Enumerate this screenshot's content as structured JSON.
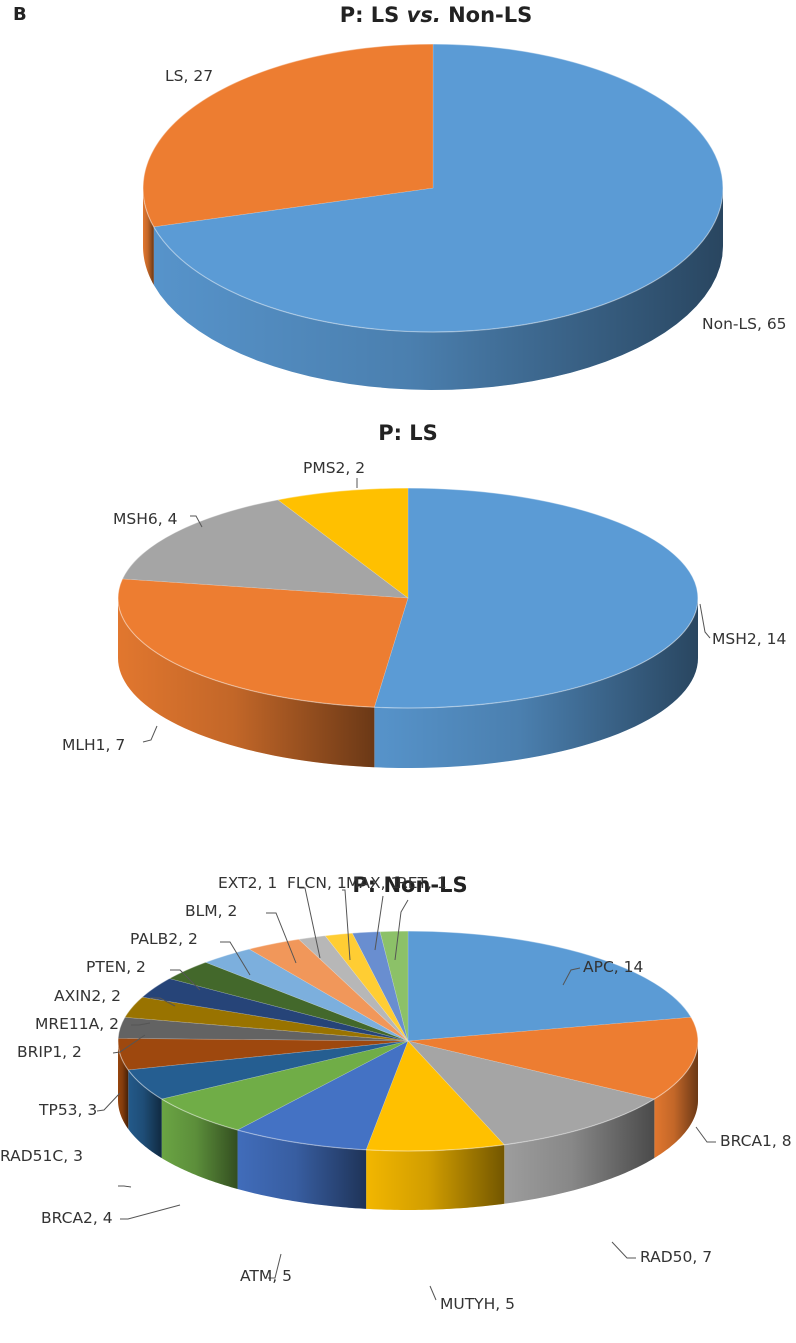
{
  "panel_letter": "B",
  "chart_data": [
    {
      "type": "pie",
      "title_parts": [
        {
          "text": "P: LS ",
          "italic": false
        },
        {
          "text": "vs.",
          "italic": true
        },
        {
          "text": " Non-LS",
          "italic": false
        }
      ],
      "slices": [
        {
          "label": "Non-LS",
          "value": 65,
          "display": "Non-LS, 65",
          "color": "#5B9BD5"
        },
        {
          "label": "LS",
          "value": 27,
          "display": "LS, 27",
          "color": "#ED7D31"
        }
      ]
    },
    {
      "type": "pie",
      "title": "P: LS",
      "slices": [
        {
          "label": "MSH2",
          "value": 14,
          "display": "MSH2, 14",
          "color": "#5B9BD5"
        },
        {
          "label": "MLH1",
          "value": 7,
          "display": "MLH1, 7",
          "color": "#ED7D31"
        },
        {
          "label": "MSH6",
          "value": 4,
          "display": "MSH6, 4",
          "color": "#A5A5A5"
        },
        {
          "label": "PMS2",
          "value": 2,
          "display": "PMS2, 2",
          "color": "#FFC000"
        }
      ]
    },
    {
      "type": "pie",
      "title": "P: Non-LS",
      "slices": [
        {
          "label": "APC",
          "value": 14,
          "display": "APC, 14",
          "color": "#5B9BD5"
        },
        {
          "label": "BRCA1",
          "value": 8,
          "display": "BRCA1, 8",
          "color": "#ED7D31"
        },
        {
          "label": "RAD50",
          "value": 7,
          "display": "RAD50, 7",
          "color": "#A5A5A5"
        },
        {
          "label": "MUTYH",
          "value": 5,
          "display": "MUTYH, 5",
          "color": "#FFC000"
        },
        {
          "label": "ATM",
          "value": 5,
          "display": "ATM, 5",
          "color": "#4472C4"
        },
        {
          "label": "BRCA2",
          "value": 4,
          "display": "BRCA2, 4",
          "color": "#70AD47"
        },
        {
          "label": "RAD51C",
          "value": 3,
          "display": "RAD51C, 3",
          "color": "#255E91"
        },
        {
          "label": "TP53",
          "value": 3,
          "display": "TP53, 3",
          "color": "#9E480E"
        },
        {
          "label": "BRIP1",
          "value": 2,
          "display": "BRIP1, 2",
          "color": "#636363"
        },
        {
          "label": "MRE11A",
          "value": 2,
          "display": "MRE11A, 2",
          "color": "#997300"
        },
        {
          "label": "AXIN2",
          "value": 2,
          "display": "AXIN2, 2",
          "color": "#264478"
        },
        {
          "label": "PTEN",
          "value": 2,
          "display": "PTEN, 2",
          "color": "#43682B"
        },
        {
          "label": "PALB2",
          "value": 2,
          "display": "PALB2, 2",
          "color": "#7CAFDD"
        },
        {
          "label": "BLM",
          "value": 2,
          "display": "BLM, 2",
          "color": "#F1975A"
        },
        {
          "label": "EXT2",
          "value": 1,
          "display": "EXT2, 1",
          "color": "#B7B7B7"
        },
        {
          "label": "FLCN",
          "value": 1,
          "display": "FLCN, 1",
          "color": "#FFCD33"
        },
        {
          "label": "MAX",
          "value": 1,
          "display": "MAX, 1",
          "color": "#698ED0"
        },
        {
          "label": "RET",
          "value": 1,
          "display": "RET, 1",
          "color": "#8CC168"
        }
      ]
    }
  ]
}
